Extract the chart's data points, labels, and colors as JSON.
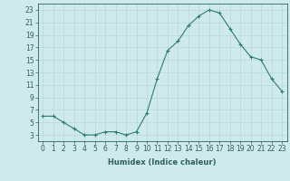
{
  "x": [
    0,
    1,
    2,
    3,
    4,
    5,
    6,
    7,
    8,
    9,
    10,
    11,
    12,
    13,
    14,
    15,
    16,
    17,
    18,
    19,
    20,
    21,
    22,
    23
  ],
  "y": [
    6,
    6,
    5,
    4,
    3,
    3,
    3.5,
    3.5,
    3,
    3.5,
    6.5,
    12,
    16.5,
    18,
    20.5,
    22,
    23,
    22.5,
    20,
    17.5,
    15.5,
    15,
    12,
    10
  ],
  "line_color": "#2d7d6e",
  "marker": "+",
  "marker_size": 3,
  "marker_edge_width": 0.8,
  "line_width": 0.8,
  "bg_color": "#ceeaea",
  "grid_color": "#b8d8d8",
  "xlabel": "Humidex (Indice chaleur)",
  "xlim": [
    -0.5,
    23.5
  ],
  "ylim": [
    2,
    24
  ],
  "ytick_vals": [
    3,
    5,
    7,
    9,
    11,
    13,
    15,
    17,
    19,
    21,
    23
  ],
  "ytick_labels": [
    "3",
    "5",
    "7",
    "9",
    "11",
    "13",
    "15",
    "17",
    "19",
    "21",
    "23"
  ],
  "xtick_vals": [
    0,
    1,
    2,
    3,
    4,
    5,
    6,
    7,
    8,
    9,
    10,
    11,
    12,
    13,
    14,
    15,
    16,
    17,
    18,
    19,
    20,
    21,
    22,
    23
  ],
  "xtick_labels": [
    "0",
    "1",
    "2",
    "3",
    "4",
    "5",
    "6",
    "7",
    "8",
    "9",
    "10",
    "11",
    "12",
    "13",
    "14",
    "15",
    "16",
    "17",
    "18",
    "19",
    "20",
    "21",
    "22",
    "23"
  ],
  "xlabel_fontsize": 6,
  "xlabel_fontweight": "bold",
  "tick_fontsize": 5.5,
  "tick_color": "#2d6060",
  "spine_color": "#2d6060"
}
